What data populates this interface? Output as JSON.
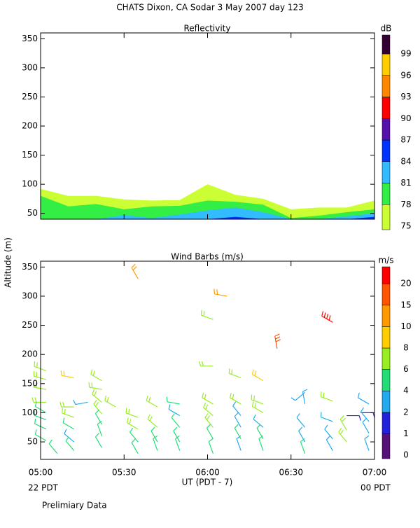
{
  "title": "CHATS Dixon, CA  Sodar   3 May 2007  day 123",
  "ylabel": "Altitude (m)",
  "xlabel": "UT  (PDT - 7)",
  "x_start_label": "22 PDT",
  "x_end_label": "00 PDT",
  "footnote": "Prelimiary Data",
  "chart_data": [
    {
      "type": "area",
      "title": "Reflectivity",
      "x": [
        300,
        310,
        320,
        330,
        340,
        350,
        360,
        370,
        380,
        390,
        400,
        410,
        420
      ],
      "series": [
        {
          "color": "#ccff33",
          "values": [
            92,
            80,
            80,
            74,
            72,
            73,
            100,
            82,
            75,
            57,
            60,
            60,
            72
          ]
        },
        {
          "color": "#33ee44",
          "values": [
            80,
            62,
            66,
            57,
            62,
            63,
            72,
            70,
            65,
            42,
            46,
            52,
            57
          ]
        },
        {
          "color": "#33bbff",
          "values": [
            40,
            40,
            40,
            47,
            42,
            48,
            55,
            60,
            52,
            40,
            40,
            45,
            50
          ]
        },
        {
          "color": "#0033ff",
          "values": [
            40,
            40,
            40,
            40,
            40,
            40,
            40,
            44,
            40,
            40,
            40,
            40,
            44
          ]
        }
      ],
      "xlim": [
        300,
        420
      ],
      "ylim": [
        40,
        360
      ],
      "yticks": [
        50,
        100,
        150,
        200,
        250,
        300,
        350
      ],
      "colorbar": {
        "title": "dB",
        "ticks": [
          75,
          78,
          81,
          84,
          87,
          90,
          93,
          96,
          99
        ],
        "colors": [
          "#ccff33",
          "#33ee44",
          "#33bbff",
          "#0033ff",
          "#5511aa",
          "#ff0000",
          "#ff8800",
          "#ffcc00",
          "#330033"
        ]
      }
    },
    {
      "type": "barb",
      "title": "Wind Barbs (m/s)",
      "x": [
        302,
        302,
        302,
        302,
        302,
        302,
        302,
        302,
        306,
        312,
        312,
        312,
        312,
        312,
        312,
        317,
        322,
        322,
        322,
        322,
        322,
        322,
        322,
        327,
        335,
        335,
        335,
        335,
        335,
        342,
        342,
        342,
        342,
        350,
        350,
        350,
        350,
        350,
        362,
        362,
        362,
        362,
        362,
        362,
        362,
        367,
        372,
        372,
        372,
        372,
        372,
        372,
        380,
        380,
        380,
        380,
        380,
        380,
        385,
        395,
        395,
        395,
        395,
        395,
        405,
        405,
        405,
        405,
        405,
        410,
        410,
        410,
        415,
        418,
        418,
        418,
        418
      ],
      "heights": [
        172,
        157,
        140,
        118,
        100,
        88,
        72,
        52,
        30,
        160,
        110,
        92,
        72,
        50,
        35,
        118,
        155,
        140,
        118,
        98,
        80,
        60,
        40,
        110,
        330,
        92,
        72,
        50,
        30,
        110,
        75,
        50,
        35,
        115,
        95,
        75,
        50,
        35,
        260,
        180,
        115,
        95,
        75,
        55,
        30,
        300,
        160,
        115,
        95,
        75,
        55,
        35,
        155,
        115,
        100,
        75,
        55,
        35,
        210,
        135,
        115,
        75,
        50,
        30,
        255,
        120,
        85,
        55,
        35,
        95,
        70,
        50,
        100,
        115,
        85,
        65,
        35
      ],
      "speeds": [
        6,
        6,
        6,
        6,
        5,
        5,
        5,
        5,
        4,
        8,
        6,
        6,
        5,
        2,
        4,
        2,
        6,
        6,
        6,
        6,
        4,
        4,
        4,
        6,
        10,
        6,
        6,
        4,
        4,
        6,
        6,
        4,
        4,
        4,
        2,
        4,
        4,
        4,
        6,
        6,
        6,
        6,
        6,
        4,
        4,
        10,
        6,
        6,
        2,
        2,
        4,
        2,
        8,
        6,
        6,
        2,
        4,
        4,
        15,
        2,
        2,
        2,
        2,
        4,
        20,
        6,
        2,
        2,
        2,
        1,
        6,
        6,
        1,
        2,
        2,
        2,
        2
      ],
      "directions": [
        290,
        285,
        280,
        270,
        300,
        290,
        295,
        300,
        320,
        280,
        270,
        290,
        300,
        310,
        320,
        260,
        300,
        280,
        310,
        320,
        330,
        340,
        330,
        300,
        330,
        290,
        300,
        320,
        330,
        300,
        310,
        330,
        340,
        280,
        300,
        320,
        330,
        340,
        290,
        270,
        300,
        310,
        320,
        330,
        340,
        280,
        290,
        300,
        320,
        330,
        330,
        340,
        300,
        290,
        300,
        310,
        330,
        340,
        350,
        230,
        350,
        320,
        330,
        340,
        300,
        290,
        290,
        320,
        330,
        90,
        330,
        320,
        90,
        300,
        320,
        330,
        340
      ],
      "xlim": [
        300,
        420
      ],
      "ylim": [
        20,
        360
      ],
      "xticks": [
        {
          "value": 300,
          "label": "05:00"
        },
        {
          "value": 330,
          "label": "05:30"
        },
        {
          "value": 360,
          "label": "06:00"
        },
        {
          "value": 390,
          "label": "06:30"
        },
        {
          "value": 420,
          "label": "07:00"
        }
      ],
      "yticks": [
        50,
        100,
        150,
        200,
        250,
        300,
        350
      ],
      "colorbar": {
        "title": "m/s",
        "ticks": [
          0,
          1,
          2,
          4,
          6,
          8,
          10,
          15,
          20
        ],
        "colors": [
          "#551177",
          "#2222dd",
          "#22aaee",
          "#22dd77",
          "#99ee22",
          "#ffcc00",
          "#ff9900",
          "#ff5500",
          "#ff0000"
        ]
      }
    }
  ]
}
